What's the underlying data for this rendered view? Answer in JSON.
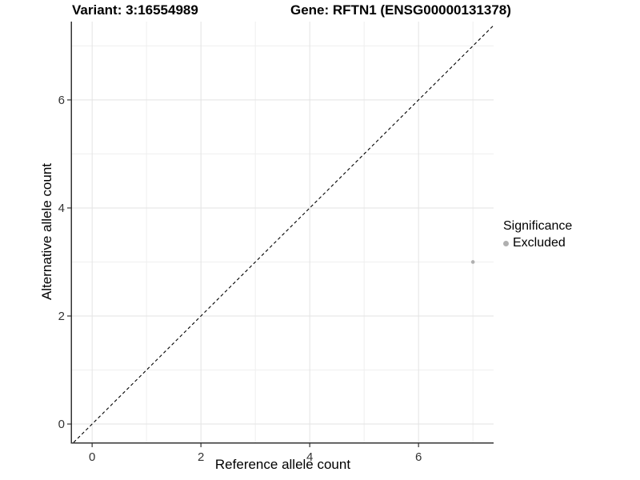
{
  "chart_data": {
    "type": "scatter",
    "titles": {
      "left": "Variant: 3:16554989",
      "right": "Gene: RFTN1 (ENSG00000131378)"
    },
    "xlabel": "Reference allele count",
    "ylabel": "Alternative allele count",
    "xlim": [
      -0.37,
      7.38
    ],
    "ylim": [
      -0.34,
      7.45
    ],
    "xticks": [
      0,
      2,
      4,
      6
    ],
    "yticks": [
      0,
      2,
      4,
      6
    ],
    "xticks_minor": [
      1,
      3,
      5,
      7
    ],
    "yticks_minor": [
      1,
      3,
      5,
      7
    ],
    "grid": "major and minor gridlines on, white background",
    "reference_line": {
      "type": "identity",
      "style": "dashed"
    },
    "series": [
      {
        "name": "Excluded",
        "color": "#b0b0b0",
        "points": [
          [
            7,
            3
          ]
        ]
      }
    ],
    "legend": {
      "title": "Significance",
      "position": "right",
      "items": [
        {
          "label": "Excluded",
          "color": "#b0b0b0"
        }
      ]
    },
    "colors": {
      "axis": "#333333",
      "tick_label": "#333333",
      "grid_major": "#e3e3e3",
      "grid_minor": "#efefef",
      "dashed_line": "#000000",
      "background": "#ffffff"
    }
  }
}
